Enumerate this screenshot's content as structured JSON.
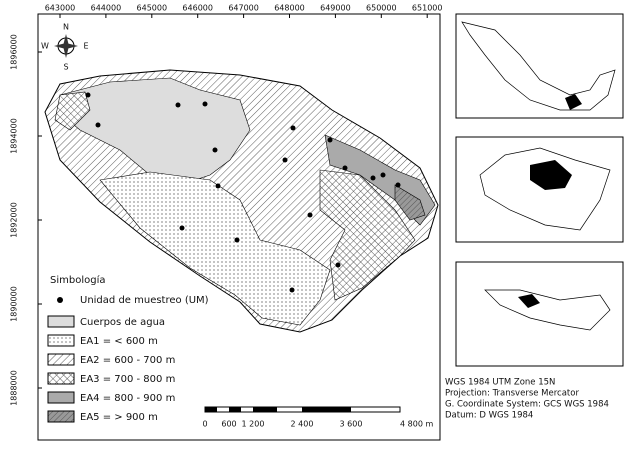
{
  "map": {
    "xticks": [
      "643000",
      "644000",
      "645000",
      "646000",
      "647000",
      "648000",
      "649000",
      "650000",
      "651000"
    ],
    "yticks": [
      "1888000",
      "1890000",
      "1892000",
      "1894000",
      "1896000"
    ],
    "compass": {
      "n": "N",
      "e": "E",
      "s": "S",
      "w": "W"
    },
    "legend": {
      "title": "Simbología",
      "items": [
        "Unidad de muestreo (UM)",
        "Cuerpos de agua",
        "EA1 = < 600 m",
        "EA2 = 600 - 700 m",
        "EA3 = 700 - 800 m",
        "EA4 = 800 - 900 m",
        "EA5 = > 900 m"
      ]
    },
    "scale": {
      "labels": [
        "0",
        "600",
        "1 200",
        "2 400",
        "3 600",
        "4 800 m"
      ]
    },
    "info": [
      "WGS 1984 UTM Zone 15N",
      "Projection: Transverse Mercator",
      "G. Coordinate System: GCS WGS 1984",
      "Datum: D WGS 1984"
    ]
  }
}
